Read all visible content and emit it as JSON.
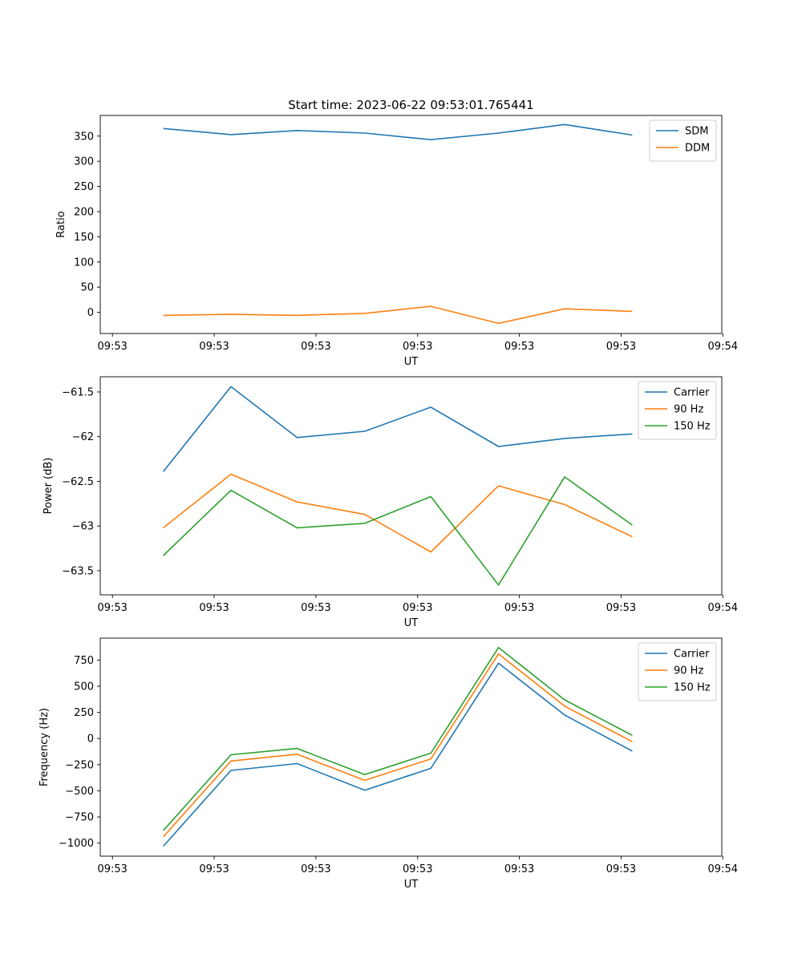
{
  "figure": {
    "title": "Start time: 2023-06-22 09:53:01.765441"
  },
  "chart_data": [
    {
      "type": "line",
      "x": [
        "09:53:02.500",
        "09:53:03.165",
        "09:53:03.815",
        "09:53:04.480",
        "09:53:05.130",
        "09:53:05.795",
        "09:53:06.445",
        "09:53:07.110"
      ],
      "series": [
        {
          "name": "SDM",
          "color": "#1f77b4",
          "values": [
            365,
            353,
            361,
            356,
            343,
            356,
            373,
            352
          ]
        },
        {
          "name": "DDM",
          "color": "#ff7f0e",
          "values": [
            -6,
            -4,
            -6,
            -2,
            12,
            -22,
            7,
            2
          ]
        }
      ],
      "xlabel": "UT",
      "ylabel": "Ratio",
      "xticks": [
        "09:53",
        "09:53",
        "09:53",
        "09:53",
        "09:53",
        "09:53",
        "09:54"
      ],
      "xlim": [
        "09:53:01.880",
        "09:53:07.990"
      ],
      "ylim": [
        -42,
        391
      ],
      "yticks": [
        0,
        50,
        100,
        150,
        200,
        250,
        300,
        350
      ],
      "legend": "top-right",
      "grid": false
    },
    {
      "type": "line",
      "x": [
        "09:53:02.500",
        "09:53:03.165",
        "09:53:03.815",
        "09:53:04.480",
        "09:53:05.130",
        "09:53:05.795",
        "09:53:06.445",
        "09:53:07.110"
      ],
      "series": [
        {
          "name": "Carrier",
          "color": "#1f77b4",
          "values": [
            -62.39,
            -61.44,
            -62.01,
            -61.94,
            -61.67,
            -62.11,
            -62.02,
            -61.97
          ]
        },
        {
          "name": "90 Hz",
          "color": "#ff7f0e",
          "values": [
            -63.02,
            -62.42,
            -62.73,
            -62.87,
            -63.29,
            -62.55,
            -62.76,
            -63.12
          ]
        },
        {
          "name": "150 Hz",
          "color": "#2ca02c",
          "values": [
            -63.33,
            -62.6,
            -63.02,
            -62.97,
            -62.67,
            -63.66,
            -62.45,
            -62.99
          ]
        }
      ],
      "xlabel": "UT",
      "ylabel": "Power (dB)",
      "xticks": [
        "09:53",
        "09:53",
        "09:53",
        "09:53",
        "09:53",
        "09:53",
        "09:54"
      ],
      "xlim": [
        "09:53:01.880",
        "09:53:07.990"
      ],
      "ylim": [
        -63.77,
        -61.33
      ],
      "yticks": [
        -63.5,
        -63.0,
        -62.5,
        -62.0,
        -61.5
      ],
      "legend": "top-right",
      "grid": false
    },
    {
      "type": "line",
      "x": [
        "09:53:02.500",
        "09:53:03.165",
        "09:53:03.815",
        "09:53:04.480",
        "09:53:05.130",
        "09:53:05.795",
        "09:53:06.445",
        "09:53:07.110"
      ],
      "series": [
        {
          "name": "Carrier",
          "color": "#1f77b4",
          "values": [
            -1030,
            -305,
            -240,
            -495,
            -285,
            720,
            225,
            -120
          ]
        },
        {
          "name": "90 Hz",
          "color": "#ff7f0e",
          "values": [
            -940,
            -215,
            -150,
            -400,
            -195,
            810,
            310,
            -30
          ]
        },
        {
          "name": "150 Hz",
          "color": "#2ca02c",
          "values": [
            -880,
            -155,
            -95,
            -345,
            -140,
            870,
            370,
            30
          ]
        }
      ],
      "xlabel": "UT",
      "ylabel": "Frequency (Hz)",
      "xticks": [
        "09:53",
        "09:53",
        "09:53",
        "09:53",
        "09:53",
        "09:53",
        "09:54"
      ],
      "xlim": [
        "09:53:01.880",
        "09:53:07.990"
      ],
      "ylim": [
        -1125,
        960
      ],
      "yticks": [
        -1000,
        -750,
        -500,
        -250,
        0,
        250,
        500,
        750
      ],
      "legend": "top-right",
      "grid": false
    }
  ]
}
